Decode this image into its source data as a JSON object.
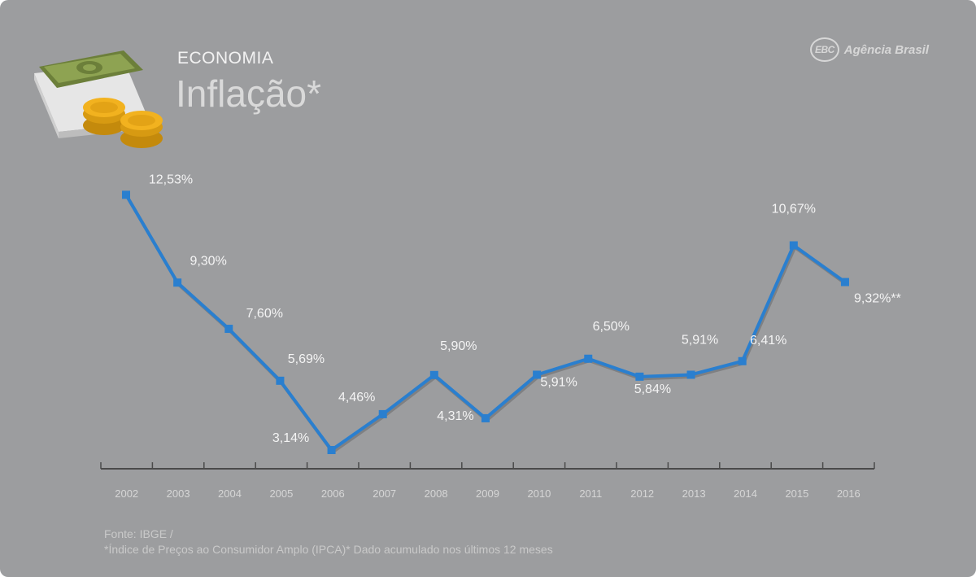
{
  "header": {
    "section": "ECONOMIA",
    "title": "Inflação*"
  },
  "brand": {
    "logo": "EBC",
    "name": "Agência Brasil"
  },
  "footer": {
    "source": "Fonte: IBGE /",
    "note": "*Índice de Preços ao Consumidor Amplo (IPCA)* Dado acumulado nos últimos 12 meses"
  },
  "colors": {
    "background": "#9c9d9f",
    "line": "#2a7fcf",
    "axis": "#4a4a4a",
    "labels": "#f4f4f4"
  },
  "chart_data": {
    "type": "line",
    "title": "Inflação*",
    "xlabel": "",
    "ylabel": "",
    "grid": false,
    "ylim": [
      0,
      14
    ],
    "categories": [
      "2002",
      "2003",
      "2004",
      "2005",
      "2006",
      "2007",
      "2008",
      "2009",
      "2010",
      "2011",
      "2012",
      "2013",
      "2014",
      "2015",
      "2016"
    ],
    "series": [
      {
        "values": [
          12.53,
          9.3,
          7.6,
          5.69,
          3.14,
          4.46,
          5.9,
          4.31,
          5.91,
          6.5,
          5.84,
          5.91,
          6.41,
          10.67,
          9.32
        ],
        "labels": [
          "12,53%",
          "9,30%",
          "7,60%",
          "5,69%",
          "3,14%",
          "4,46%",
          "5,90%",
          "4,31%",
          "5,91%",
          "6,50%",
          "5,84%",
          "5,91%",
          "6,41%",
          "10,67%",
          "9,32%**"
        ]
      }
    ]
  }
}
